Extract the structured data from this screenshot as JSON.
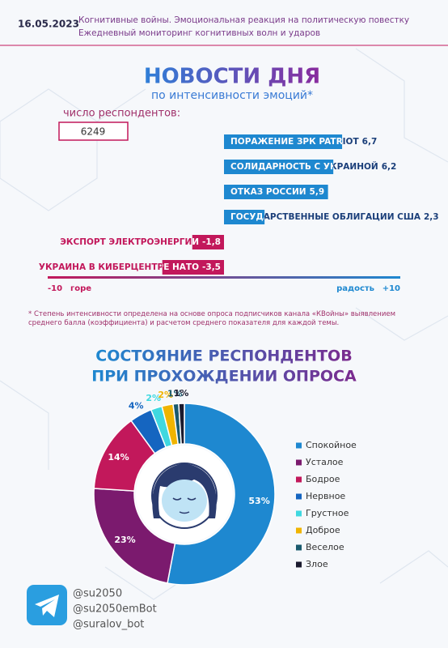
{
  "header": {
    "date": "16.05.2023",
    "line1": "Когнитивные войны. Эмоциональная реакция на политическую повестку",
    "line2": "Ежедневный мониторинг когнитивных волн и ударов"
  },
  "respondents": {
    "label": "число респондентов:",
    "value": 6249
  },
  "chart_data": [
    {
      "type": "bar",
      "orientation": "horizontal",
      "title": "НОВОСТИ ДНЯ",
      "subtitle": "по интенсивности эмоций*",
      "categories": [
        "ПОРАЖЕНИЕ ЗРК PATRIOT",
        "СОЛИДАРНОСТЬ С УКРАИНОЙ",
        "ОТКАЗ РОССИИ",
        "ГОСУДАРСТВЕННЫЕ ОБЛИГАЦИИ США",
        "ЭКСПОРТ ЭЛЕКТРОЭНЕРГИИ",
        "УКРАИНА В КИБЕРЦЕНТРЕ НАТО"
      ],
      "values": [
        6.7,
        6.2,
        5.9,
        2.3,
        -1.8,
        -3.5
      ],
      "value_labels": [
        "6,7",
        "6,2",
        "5,9",
        "2,3",
        "-1,8",
        "-3,5"
      ],
      "positive_color": "#1e88d0",
      "negative_color": "#c2185b",
      "xlim": [
        -10,
        10
      ],
      "xticks": [
        -10,
        {
          "value": 10,
          "label": "+10"
        }
      ],
      "negative_label": "горе",
      "positive_label": "радость"
    },
    {
      "type": "pie",
      "title": [
        "СОСТОЯНИЕ РЕСПОНДЕНТОВ",
        "ПРИ ПРОХОЖДЕНИИ ОПРОСА"
      ],
      "categories": [
        "Спокойное",
        "Усталое",
        "Бодрое",
        "Нервное",
        "Грустное",
        "Доброе",
        "Веселое",
        "Злое"
      ],
      "values": [
        53,
        23,
        14,
        4,
        2,
        2,
        1,
        1
      ],
      "value_labels": [
        "53%",
        "23%",
        "14%",
        "4%",
        "2%",
        "2%",
        "1%",
        "1%"
      ],
      "colors": [
        "#1e88d0",
        "#7b1a6e",
        "#c2185b",
        "#1565c0",
        "#3fd8e0",
        "#f0b400",
        "#1a5a6e",
        "#1a1a2e"
      ],
      "donut": true,
      "legend": "right"
    }
  ],
  "footnote": "* Степень интенсивности определена на основе опроса подписчиков канала «КВойны» выявлением среднего балла (коэффициента) и расчетом среднего показателя для каждой темы.",
  "contacts": [
    "@su2050",
    "@su2050emBot",
    "@suralov_bot"
  ]
}
